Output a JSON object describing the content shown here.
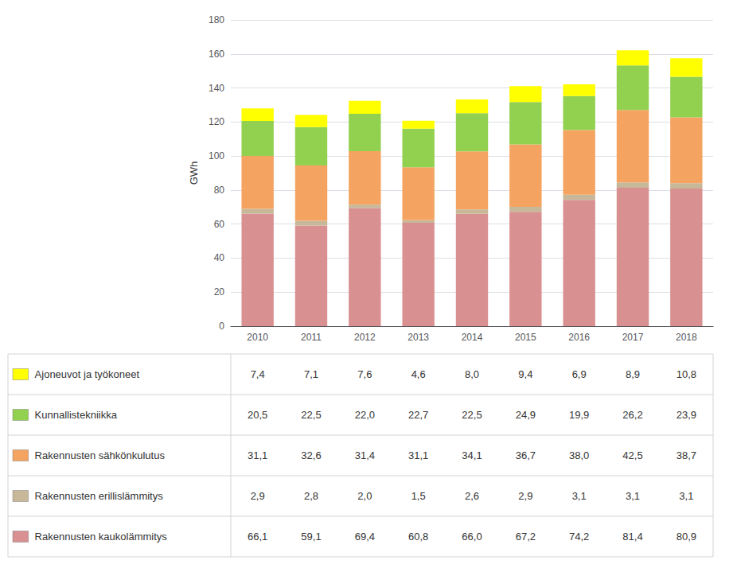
{
  "chart_data": {
    "type": "bar",
    "stacked": true,
    "grid": true,
    "ylabel": "GWh",
    "categories": [
      "2010",
      "2011",
      "2012",
      "2013",
      "2014",
      "2015",
      "2016",
      "2017",
      "2018"
    ],
    "ylim": [
      0,
      180
    ],
    "yticks": [
      0,
      20,
      40,
      60,
      80,
      100,
      120,
      140,
      160,
      180
    ],
    "series": [
      {
        "name": "Rakennusten kaukolämmitys",
        "color": "#d99090",
        "values": [
          66.1,
          59.1,
          69.4,
          60.8,
          66.0,
          67.2,
          74.2,
          81.4,
          80.9
        ],
        "value_labels": [
          "66,1",
          "59,1",
          "69,4",
          "60,8",
          "66,0",
          "67,2",
          "74,2",
          "81,4",
          "80,9"
        ]
      },
      {
        "name": "Rakennusten erillislämmitys",
        "color": "#c8b89a",
        "values": [
          2.9,
          2.8,
          2.0,
          1.5,
          2.6,
          2.9,
          3.1,
          3.1,
          3.1
        ],
        "value_labels": [
          "2,9",
          "2,8",
          "2,0",
          "1,5",
          "2,6",
          "2,9",
          "3,1",
          "3,1",
          "3,1"
        ]
      },
      {
        "name": "Rakennusten sähkönkulutus",
        "color": "#f4a460",
        "values": [
          31.1,
          32.6,
          31.4,
          31.1,
          34.1,
          36.7,
          38.0,
          42.5,
          38.7
        ],
        "value_labels": [
          "31,1",
          "32,6",
          "31,4",
          "31,1",
          "34,1",
          "36,7",
          "38,0",
          "42,5",
          "38,7"
        ]
      },
      {
        "name": "Kunnallistekniikka",
        "color": "#92d050",
        "values": [
          20.5,
          22.5,
          22.0,
          22.7,
          22.5,
          24.9,
          19.9,
          26.2,
          23.9
        ],
        "value_labels": [
          "20,5",
          "22,5",
          "22,0",
          "22,7",
          "22,5",
          "24,9",
          "19,9",
          "26,2",
          "23,9"
        ]
      },
      {
        "name": "Ajoneuvot ja työkoneet",
        "color": "#ffff00",
        "values": [
          7.4,
          7.1,
          7.6,
          4.6,
          8.0,
          9.4,
          6.9,
          8.9,
          10.8
        ],
        "value_labels": [
          "7,4",
          "7,1",
          "7,6",
          "4,6",
          "8,0",
          "9,4",
          "6,9",
          "8,9",
          "10,8"
        ]
      }
    ]
  }
}
